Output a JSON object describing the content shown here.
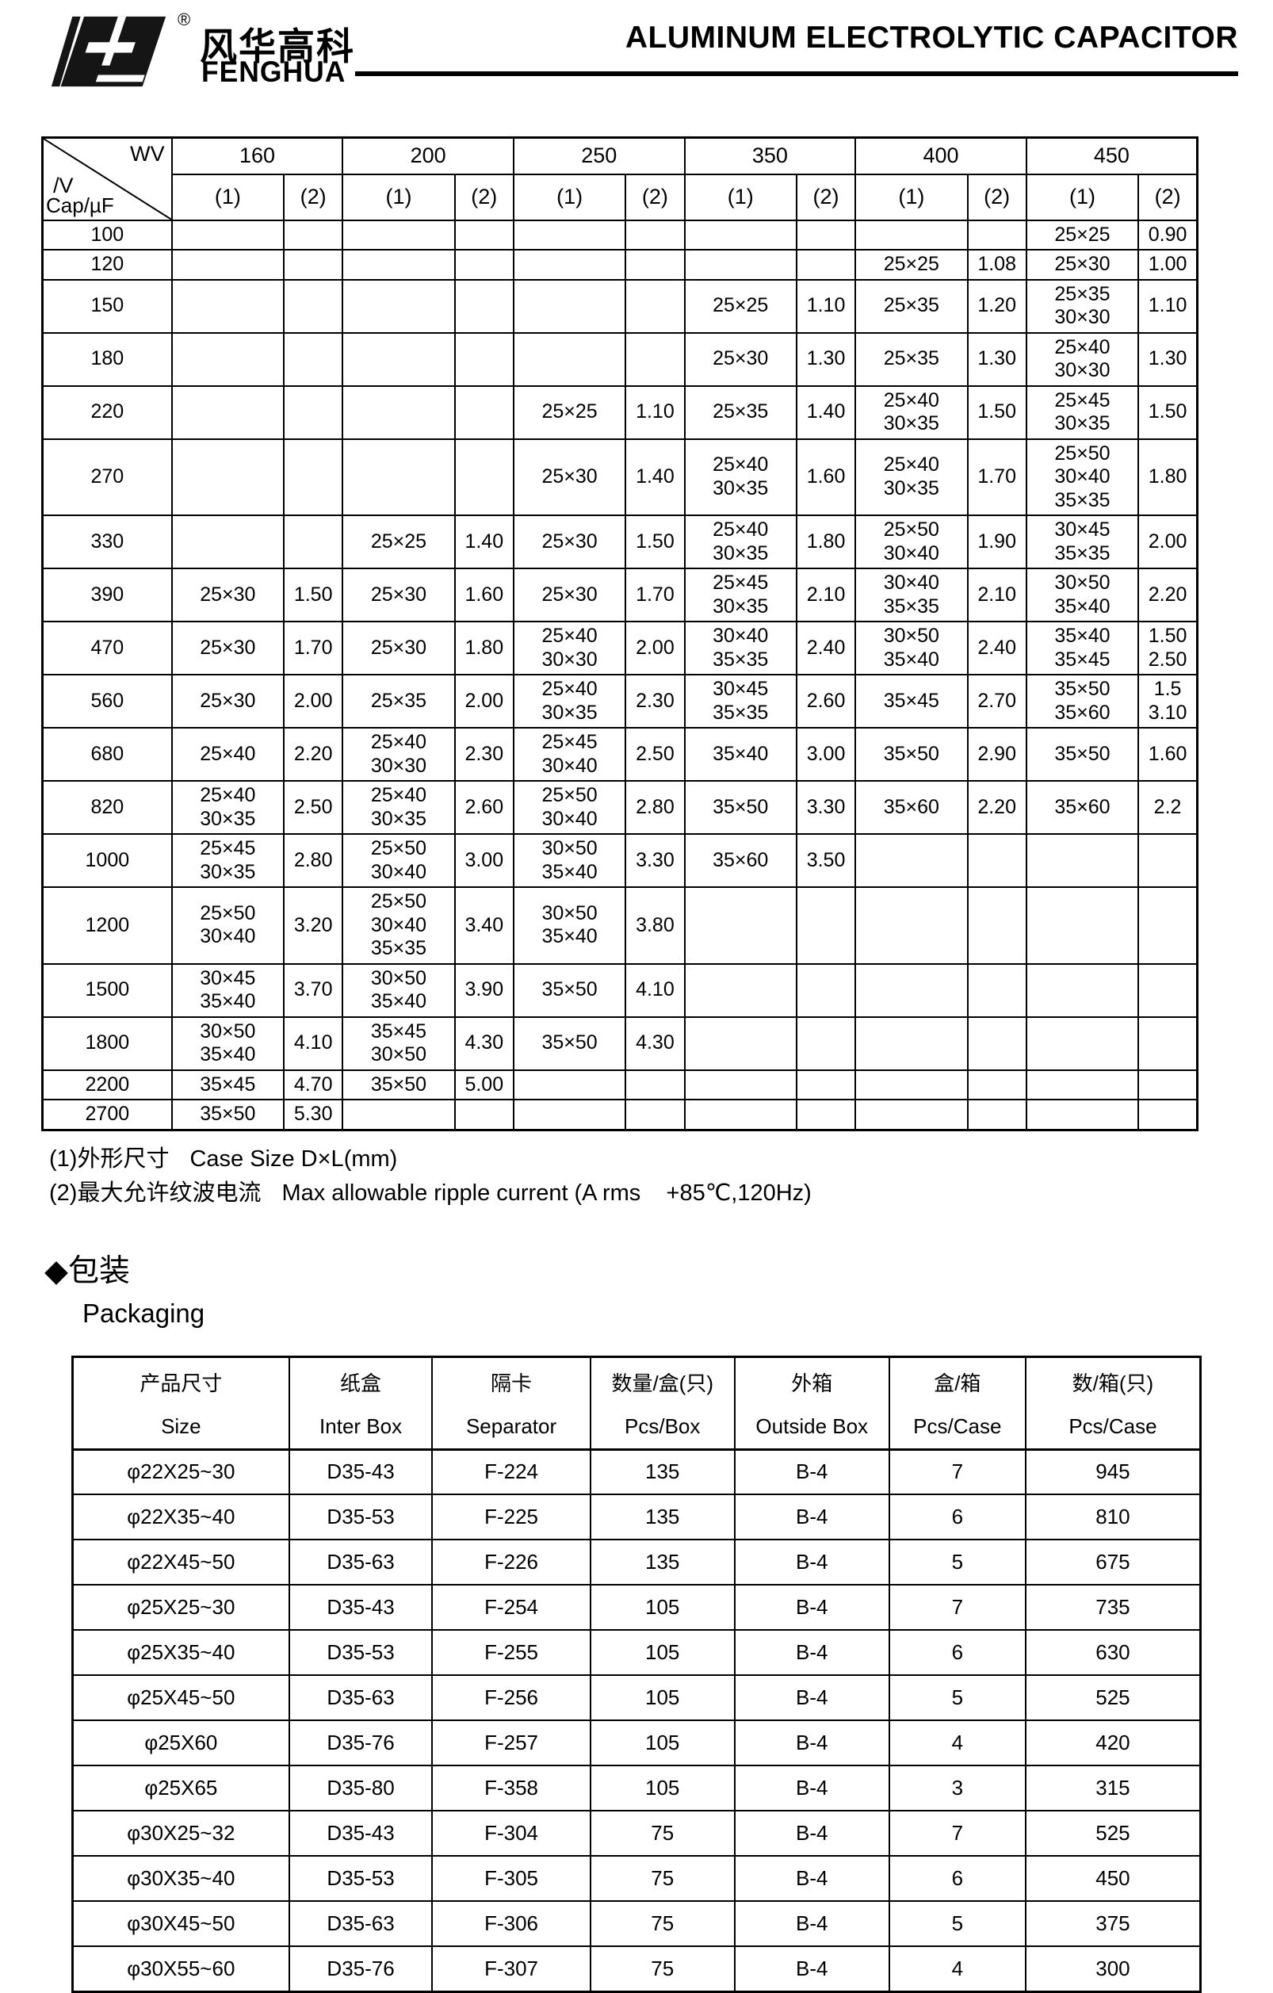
{
  "header": {
    "brand_cn": "风华高科",
    "brand_en": "FENGHUA",
    "registered_mark": "®",
    "title": "ALUMINUM ELECTROLYTIC CAPACITOR"
  },
  "ratings_table": {
    "corner": {
      "wv": "WV",
      "v": "/V",
      "cap": "Cap/µF"
    },
    "voltages": [
      "160",
      "200",
      "250",
      "350",
      "400",
      "450"
    ],
    "sub_headers": [
      "(1)",
      "(2)"
    ],
    "rows": [
      {
        "cap": "100",
        "cells": [
          "",
          "",
          "",
          "",
          "",
          "",
          "",
          "",
          "",
          "",
          "25×25",
          "0.90"
        ]
      },
      {
        "cap": "120",
        "cells": [
          "",
          "",
          "",
          "",
          "",
          "",
          "",
          "",
          "25×25",
          "1.08",
          "25×30",
          "1.00"
        ]
      },
      {
        "cap": "150",
        "cells": [
          "",
          "",
          "",
          "",
          "",
          "",
          "25×25",
          "1.10",
          "25×35",
          "1.20",
          [
            "25×35",
            "30×30"
          ],
          "1.10"
        ]
      },
      {
        "cap": "180",
        "cells": [
          "",
          "",
          "",
          "",
          "",
          "",
          "25×30",
          "1.30",
          "25×35",
          "1.30",
          [
            "25×40",
            "30×30"
          ],
          "1.30"
        ]
      },
      {
        "cap": "220",
        "cells": [
          "",
          "",
          "",
          "",
          "25×25",
          "1.10",
          "25×35",
          "1.40",
          [
            "25×40",
            "30×35"
          ],
          "1.50",
          [
            "25×45",
            "30×35"
          ],
          "1.50"
        ]
      },
      {
        "cap": "270",
        "cells": [
          "",
          "",
          "",
          "",
          "25×30",
          "1.40",
          [
            "25×40",
            "30×35"
          ],
          "1.60",
          [
            "25×40",
            "30×35"
          ],
          "1.70",
          [
            "25×50",
            "30×40",
            "35×35"
          ],
          "1.80"
        ]
      },
      {
        "cap": "330",
        "cells": [
          "",
          "",
          "25×25",
          "1.40",
          "25×30",
          "1.50",
          [
            "25×40",
            "30×35"
          ],
          "1.80",
          [
            "25×50",
            "30×40"
          ],
          "1.90",
          [
            "30×45",
            "35×35"
          ],
          "2.00"
        ]
      },
      {
        "cap": "390",
        "cells": [
          "25×30",
          "1.50",
          "25×30",
          "1.60",
          "25×30",
          "1.70",
          [
            "25×45",
            "30×35"
          ],
          "2.10",
          [
            "30×40",
            "35×35"
          ],
          "2.10",
          [
            "30×50",
            "35×40"
          ],
          "2.20"
        ]
      },
      {
        "cap": "470",
        "cells": [
          "25×30",
          "1.70",
          "25×30",
          "1.80",
          [
            "25×40",
            "30×30"
          ],
          "2.00",
          [
            "30×40",
            "35×35"
          ],
          "2.40",
          [
            "30×50",
            "35×40"
          ],
          "2.40",
          [
            "35×40",
            "35×45"
          ],
          [
            "1.50",
            "2.50"
          ]
        ]
      },
      {
        "cap": "560",
        "cells": [
          "25×30",
          "2.00",
          "25×35",
          "2.00",
          [
            "25×40",
            "30×35"
          ],
          "2.30",
          [
            "30×45",
            "35×35"
          ],
          "2.60",
          "35×45",
          "2.70",
          [
            "35×50",
            "35×60"
          ],
          [
            "1.5",
            "3.10"
          ]
        ]
      },
      {
        "cap": "680",
        "cells": [
          "25×40",
          "2.20",
          [
            "25×40",
            "30×30"
          ],
          "2.30",
          [
            "25×45",
            "30×40"
          ],
          "2.50",
          "35×40",
          "3.00",
          "35×50",
          "2.90",
          "35×50",
          "1.60"
        ]
      },
      {
        "cap": "820",
        "cells": [
          [
            "25×40",
            "30×35"
          ],
          "2.50",
          [
            "25×40",
            "30×35"
          ],
          "2.60",
          [
            "25×50",
            "30×40"
          ],
          "2.80",
          "35×50",
          "3.30",
          "35×60",
          "2.20",
          "35×60",
          "2.2"
        ]
      },
      {
        "cap": "1000",
        "cells": [
          [
            "25×45",
            "30×35"
          ],
          "2.80",
          [
            "25×50",
            "30×40"
          ],
          "3.00",
          [
            "30×50",
            "35×40"
          ],
          "3.30",
          "35×60",
          "3.50",
          "",
          "",
          "",
          ""
        ]
      },
      {
        "cap": "1200",
        "cells": [
          [
            "25×50",
            "30×40"
          ],
          "3.20",
          [
            "25×50",
            "30×40",
            "35×35"
          ],
          "3.40",
          [
            "30×50",
            "35×40"
          ],
          "3.80",
          "",
          "",
          "",
          "",
          "",
          ""
        ]
      },
      {
        "cap": "1500",
        "cells": [
          [
            "30×45",
            "35×40"
          ],
          "3.70",
          [
            "30×50",
            "35×40"
          ],
          "3.90",
          "35×50",
          "4.10",
          "",
          "",
          "",
          "",
          "",
          ""
        ]
      },
      {
        "cap": "1800",
        "cells": [
          [
            "30×50",
            "35×40"
          ],
          "4.10",
          [
            "35×45",
            "30×50"
          ],
          "4.30",
          "35×50",
          "4.30",
          "",
          "",
          "",
          "",
          "",
          ""
        ]
      },
      {
        "cap": "2200",
        "cells": [
          "35×45",
          "4.70",
          "35×50",
          "5.00",
          "",
          "",
          "",
          "",
          "",
          "",
          "",
          ""
        ]
      },
      {
        "cap": "2700",
        "cells": [
          "35×50",
          "5.30",
          "",
          "",
          "",
          "",
          "",
          "",
          "",
          "",
          "",
          ""
        ]
      }
    ]
  },
  "notes": {
    "note1_cn": "(1)外形尺寸",
    "note1_en": "Case Size D×L(mm)",
    "note2_cn": "(2)最大允许纹波电流",
    "note2_en": "Max allowable ripple current",
    "note2_cond": "(A rms    +85℃,120Hz)"
  },
  "packaging": {
    "heading_cn": "◆包装",
    "heading_en": "Packaging",
    "columns": [
      {
        "cn": "产品尺寸",
        "en": "Size"
      },
      {
        "cn": "纸盒",
        "en": "Inter Box"
      },
      {
        "cn": "隔卡",
        "en": "Separator"
      },
      {
        "cn": "数量/盒(只)",
        "en": "Pcs/Box"
      },
      {
        "cn": "外箱",
        "en": "Outside Box"
      },
      {
        "cn": "盒/箱",
        "en": "Pcs/Case"
      },
      {
        "cn": "数/箱(只)",
        "en": "Pcs/Case"
      }
    ],
    "rows": [
      [
        "φ22X25~30",
        "D35-43",
        "F-224",
        "135",
        "B-4",
        "7",
        "945"
      ],
      [
        "φ22X35~40",
        "D35-53",
        "F-225",
        "135",
        "B-4",
        "6",
        "810"
      ],
      [
        "φ22X45~50",
        "D35-63",
        "F-226",
        "135",
        "B-4",
        "5",
        "675"
      ],
      [
        "φ25X25~30",
        "D35-43",
        "F-254",
        "105",
        "B-4",
        "7",
        "735"
      ],
      [
        "φ25X35~40",
        "D35-53",
        "F-255",
        "105",
        "B-4",
        "6",
        "630"
      ],
      [
        "φ25X45~50",
        "D35-63",
        "F-256",
        "105",
        "B-4",
        "5",
        "525"
      ],
      [
        "φ25X60",
        "D35-76",
        "F-257",
        "105",
        "B-4",
        "4",
        "420"
      ],
      [
        "φ25X65",
        "D35-80",
        "F-358",
        "105",
        "B-4",
        "3",
        "315"
      ],
      [
        "φ30X25~32",
        "D35-43",
        "F-304",
        "75",
        "B-4",
        "7",
        "525"
      ],
      [
        "φ30X35~40",
        "D35-53",
        "F-305",
        "75",
        "B-4",
        "6",
        "450"
      ],
      [
        "φ30X45~50",
        "D35-63",
        "F-306",
        "75",
        "B-4",
        "5",
        "375"
      ],
      [
        "φ30X55~60",
        "D35-76",
        "F-307",
        "75",
        "B-4",
        "4",
        "300"
      ]
    ]
  }
}
